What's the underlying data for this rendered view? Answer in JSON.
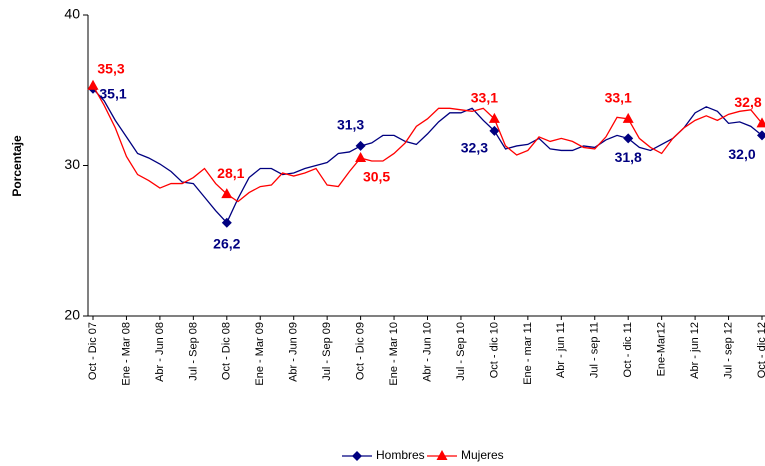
{
  "chart_data": {
    "type": "line",
    "y_label": "Porcentaje",
    "categories": [
      "Oct - Dic 07",
      null,
      null,
      "Ene - Mar 08",
      null,
      null,
      "Abr - Jun 08",
      null,
      null,
      "Jul - Sep 08",
      null,
      null,
      "Oct - Dic 08",
      null,
      null,
      "Ene - Mar 09",
      null,
      null,
      "Abr - Jun 09",
      null,
      null,
      "Jul - Sep 09",
      null,
      null,
      "Oct - Dic 09",
      null,
      null,
      "Ene - Mar 10",
      null,
      null,
      "Abr - Jun 10",
      null,
      null,
      "Jul - Sep 10",
      null,
      null,
      "Oct - dic 10",
      null,
      null,
      "Ene - mar 11",
      null,
      null,
      "Abr - jun 11",
      null,
      null,
      "Jul - sep 11",
      null,
      null,
      "Oct - dic 11",
      null,
      null,
      "Ene-Mar12",
      null,
      null,
      "Abr - jun 12",
      null,
      null,
      "Jul - sep 12",
      null,
      null,
      "Oct - dic 12"
    ],
    "series": [
      {
        "name": "Hombres",
        "color": "#000080",
        "marker": "diamond",
        "values": [
          35.1,
          34.3,
          33.0,
          31.9,
          30.8,
          30.5,
          30.1,
          29.6,
          28.9,
          28.8,
          27.9,
          27.0,
          26.2,
          27.8,
          29.2,
          29.8,
          29.8,
          29.4,
          29.5,
          29.8,
          30.0,
          30.2,
          30.8,
          30.9,
          31.3,
          31.5,
          32.0,
          32.0,
          31.6,
          31.4,
          32.1,
          32.9,
          33.5,
          33.5,
          33.8,
          33.0,
          32.3,
          31.1,
          31.3,
          31.4,
          31.8,
          31.1,
          31.0,
          31.0,
          31.3,
          31.2,
          31.7,
          32.0,
          31.8,
          31.2,
          31.0,
          31.4,
          31.8,
          32.5,
          33.5,
          33.9,
          33.6,
          32.8,
          32.9,
          32.6,
          32.0
        ],
        "value_labels": [
          "35,1",
          null,
          null,
          null,
          null,
          null,
          null,
          null,
          null,
          null,
          null,
          null,
          "26,2",
          null,
          null,
          null,
          null,
          null,
          null,
          null,
          null,
          null,
          null,
          null,
          "31,3",
          null,
          null,
          null,
          null,
          null,
          null,
          null,
          null,
          null,
          null,
          null,
          "32,3",
          null,
          null,
          null,
          null,
          null,
          null,
          null,
          null,
          null,
          null,
          null,
          "31,8",
          null,
          null,
          null,
          null,
          null,
          null,
          null,
          null,
          null,
          null,
          null,
          "32,0"
        ]
      },
      {
        "name": "Mujeres",
        "color": "#ff0000",
        "marker": "triangle",
        "values": [
          35.3,
          34.0,
          32.5,
          30.6,
          29.4,
          29.0,
          28.5,
          28.8,
          28.8,
          29.2,
          29.8,
          28.8,
          28.1,
          27.6,
          28.2,
          28.6,
          28.7,
          29.5,
          29.3,
          29.5,
          29.8,
          28.7,
          28.6,
          29.6,
          30.5,
          30.3,
          30.3,
          30.8,
          31.5,
          32.6,
          33.1,
          33.8,
          33.8,
          33.7,
          33.6,
          33.8,
          33.1,
          31.3,
          30.7,
          31.0,
          31.9,
          31.6,
          31.8,
          31.6,
          31.2,
          31.1,
          31.9,
          33.2,
          33.1,
          31.8,
          31.2,
          30.8,
          31.8,
          32.5,
          33.0,
          33.3,
          33.0,
          33.4,
          33.6,
          33.7,
          32.8
        ],
        "value_labels": [
          "35,3",
          null,
          null,
          null,
          null,
          null,
          null,
          null,
          null,
          null,
          null,
          null,
          "28,1",
          null,
          null,
          null,
          null,
          null,
          null,
          null,
          null,
          null,
          null,
          null,
          "30,5",
          null,
          null,
          null,
          null,
          null,
          null,
          null,
          null,
          null,
          null,
          null,
          "33,1",
          null,
          null,
          null,
          null,
          null,
          null,
          null,
          null,
          null,
          null,
          null,
          "33,1",
          null,
          null,
          null,
          null,
          null,
          null,
          null,
          null,
          null,
          null,
          null,
          "32,8"
        ]
      }
    ],
    "ylim": [
      20,
      40
    ],
    "yticks": [
      20,
      30,
      40
    ],
    "grid": false,
    "legend": "bottom"
  }
}
